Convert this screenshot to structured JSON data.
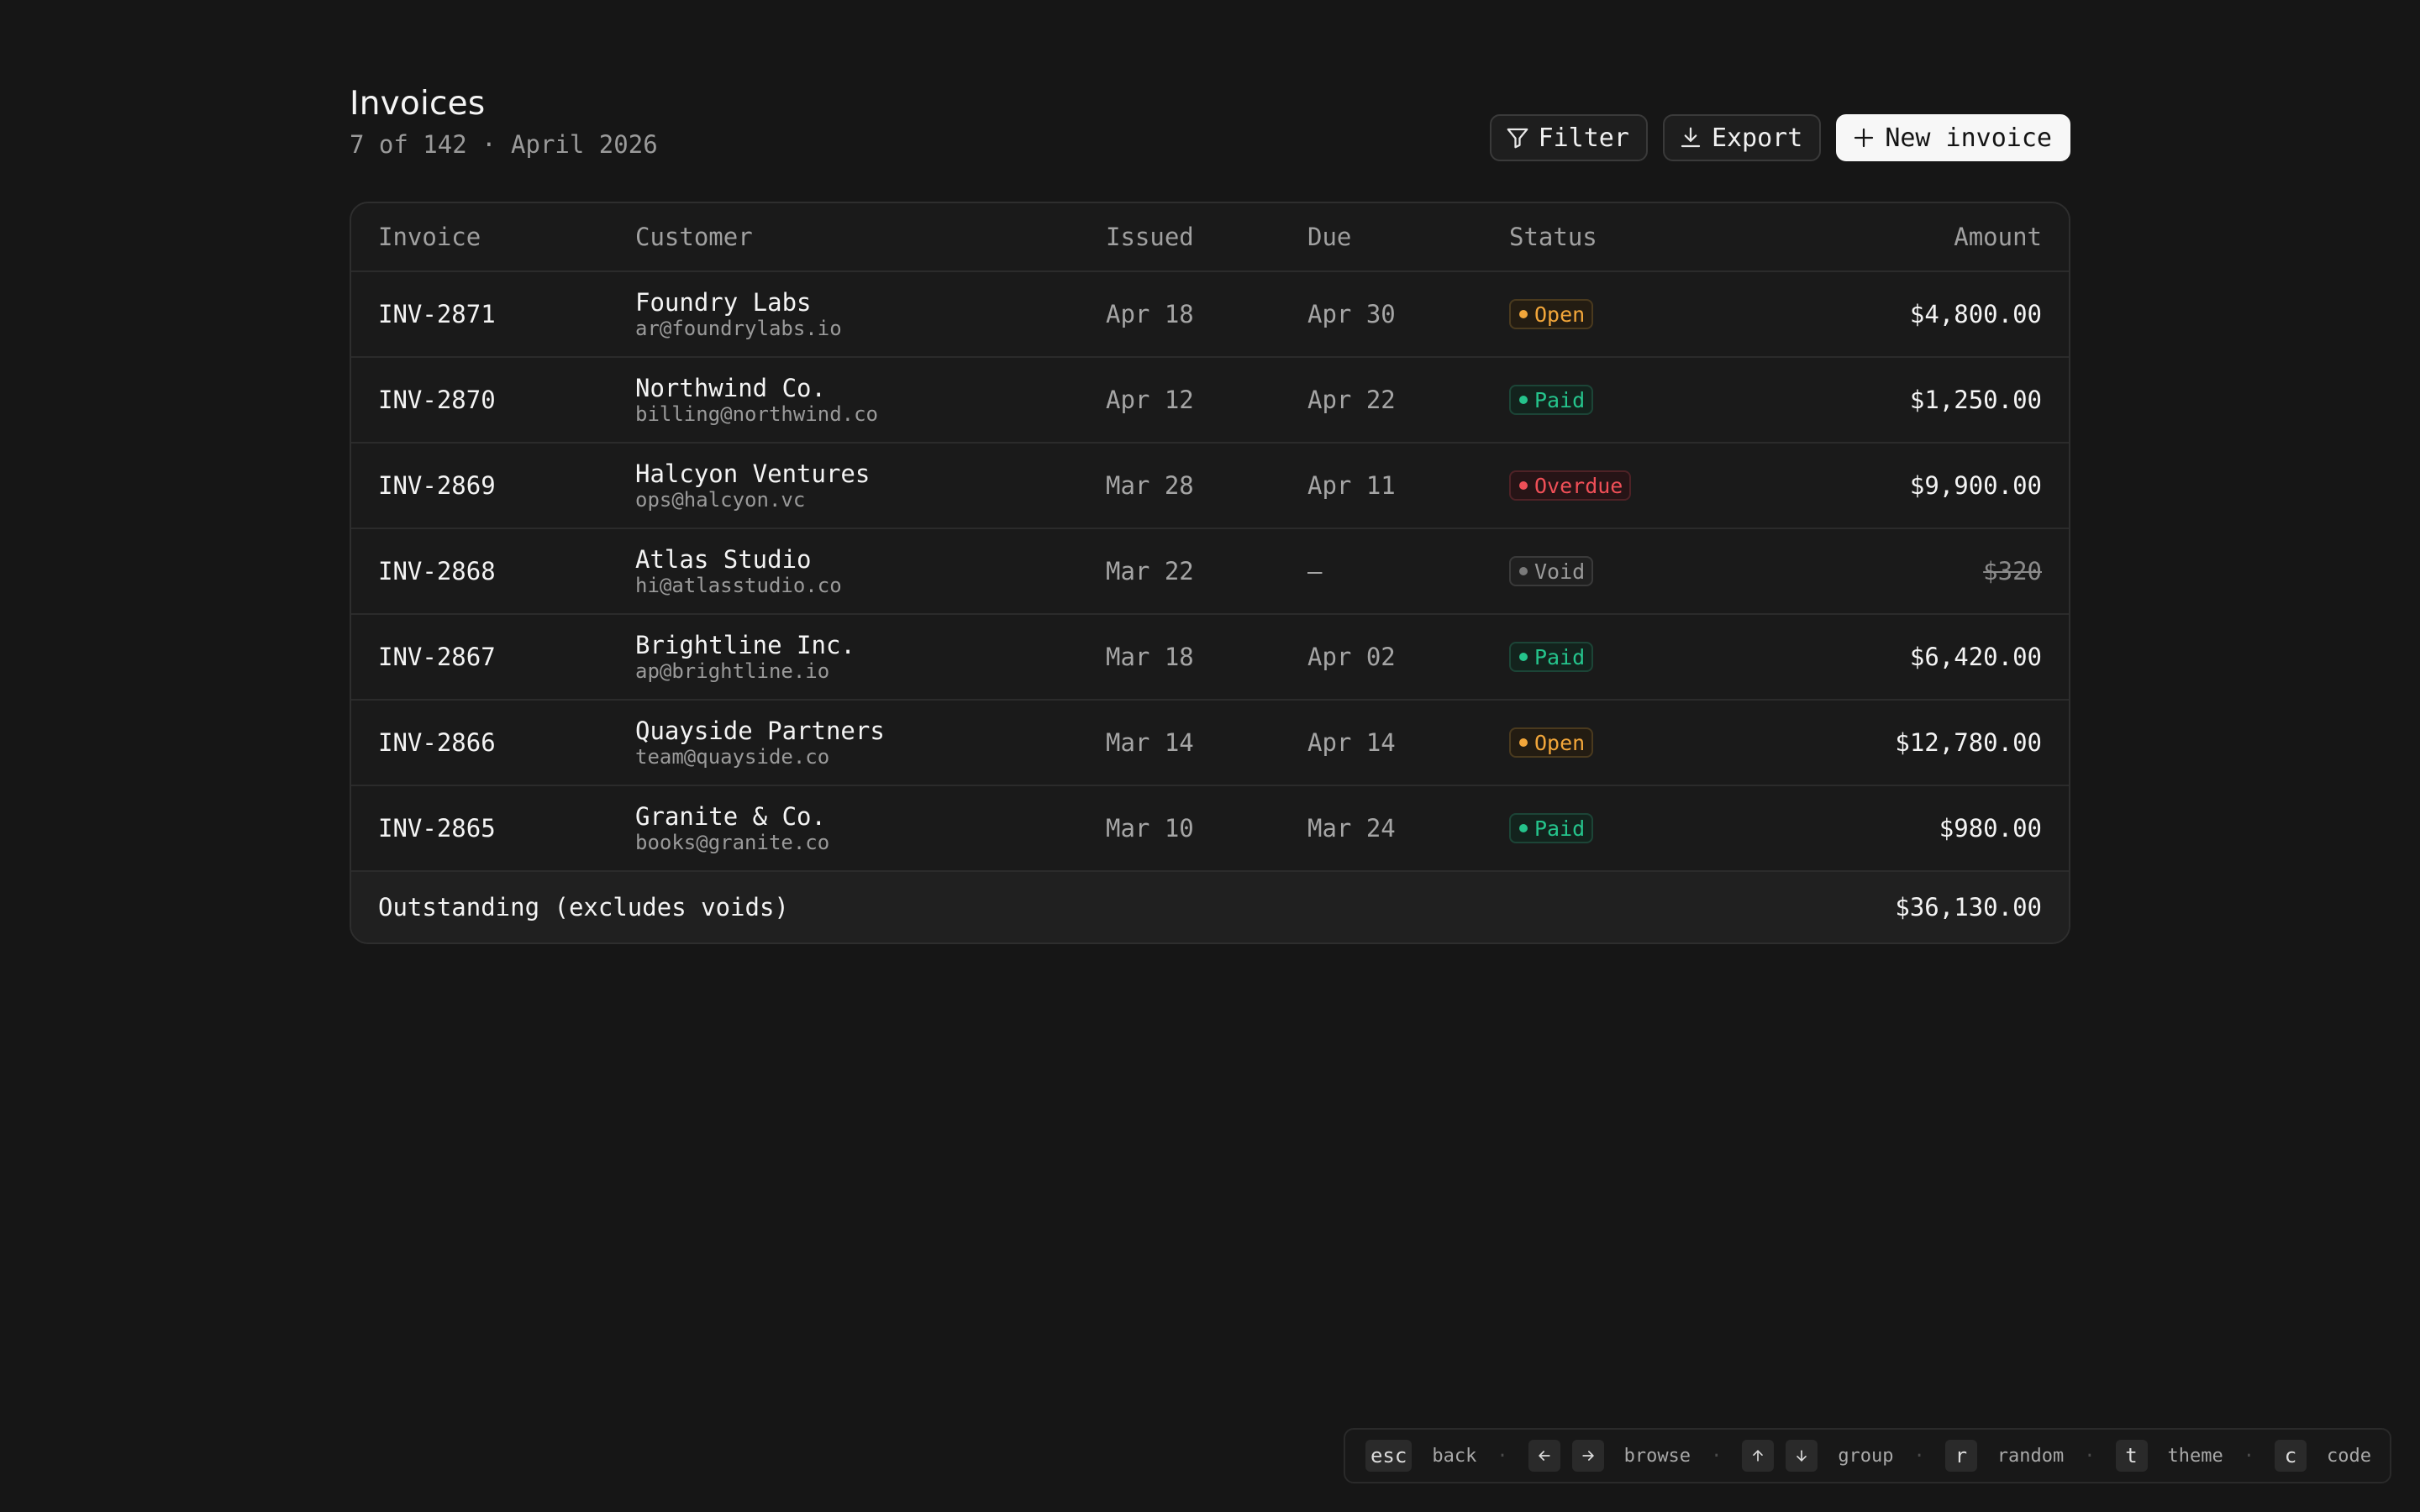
{
  "header": {
    "title": "Invoices",
    "subtitle": "7 of 142 · April 2026",
    "filter_label": "Filter",
    "export_label": "Export",
    "new_label": "New invoice"
  },
  "table": {
    "columns": {
      "invoice": "Invoice",
      "customer": "Customer",
      "issued": "Issued",
      "due": "Due",
      "status": "Status",
      "amount": "Amount"
    },
    "rows": [
      {
        "id": "INV-2871",
        "name": "Foundry Labs",
        "email": "ar@foundrylabs.io",
        "issued": "Apr 18",
        "due": "Apr 30",
        "status": "Open",
        "amount": "$4,800.00"
      },
      {
        "id": "INV-2870",
        "name": "Northwind Co.",
        "email": "billing@northwind.co",
        "issued": "Apr 12",
        "due": "Apr 22",
        "status": "Paid",
        "amount": "$1,250.00"
      },
      {
        "id": "INV-2869",
        "name": "Halcyon Ventures",
        "email": "ops@halcyon.vc",
        "issued": "Mar 28",
        "due": "Apr 11",
        "status": "Overdue",
        "amount": "$9,900.00"
      },
      {
        "id": "INV-2868",
        "name": "Atlas Studio",
        "email": "hi@atlasstudio.co",
        "issued": "Mar 22",
        "due": "—",
        "status": "Void",
        "amount": "$320"
      },
      {
        "id": "INV-2867",
        "name": "Brightline Inc.",
        "email": "ap@brightline.io",
        "issued": "Mar 18",
        "due": "Apr 02",
        "status": "Paid",
        "amount": "$6,420.00"
      },
      {
        "id": "INV-2866",
        "name": "Quayside Partners",
        "email": "team@quayside.co",
        "issued": "Mar 14",
        "due": "Apr 14",
        "status": "Open",
        "amount": "$12,780.00"
      },
      {
        "id": "INV-2865",
        "name": "Granite & Co.",
        "email": "books@granite.co",
        "issued": "Mar 10",
        "due": "Mar 24",
        "status": "Paid",
        "amount": "$980.00"
      }
    ],
    "footer": {
      "label": "Outstanding (excludes voids)",
      "amount": "$36,130.00"
    }
  },
  "shortcuts": {
    "esc_key": "esc",
    "back": "back",
    "browse": "browse",
    "group": "group",
    "r_key": "r",
    "random": "random",
    "t_key": "t",
    "theme": "theme",
    "c_key": "c",
    "code": "code",
    "separator": "·"
  },
  "colors": {
    "background": "#161616",
    "open": "#f2a63a",
    "paid": "#25c48c",
    "overdue": "#ef4f57",
    "void": "#9a9a9a"
  },
  "icons": {
    "filter": "filter-icon",
    "export": "download-icon",
    "new": "plus-icon"
  }
}
